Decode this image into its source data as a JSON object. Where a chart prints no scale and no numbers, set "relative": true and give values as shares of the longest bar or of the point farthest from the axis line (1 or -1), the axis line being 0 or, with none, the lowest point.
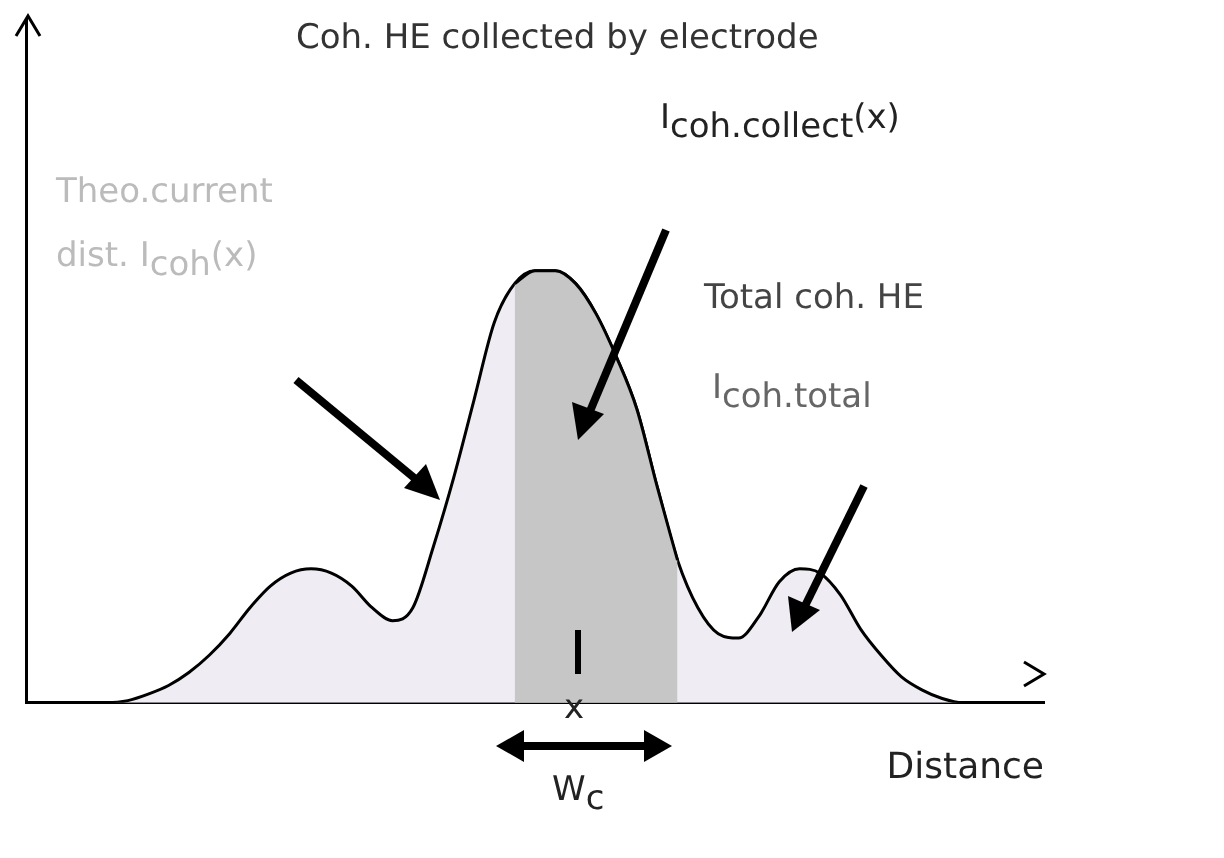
{
  "chart_data": {
    "type": "area",
    "relative": true,
    "xlabel": "Distance",
    "categories": [
      null,
      null,
      null,
      null,
      null,
      null,
      null,
      null,
      null,
      null,
      null,
      null,
      null,
      null,
      null,
      null,
      null,
      null,
      null,
      null,
      null,
      null,
      null,
      null,
      null,
      null,
      null,
      null,
      null,
      null,
      null,
      null,
      null,
      null,
      null,
      null,
      null,
      null,
      null,
      null,
      null,
      null,
      null,
      null,
      null,
      null,
      null,
      null,
      null,
      null,
      null
    ],
    "series": [
      {
        "color": "#efecf3",
        "values": [
          0,
          0,
          0,
          0,
          0,
          0.005,
          0.02,
          0.04,
          0.07,
          0.11,
          0.16,
          0.22,
          0.27,
          0.3,
          0.31,
          0.3,
          0.27,
          0.22,
          0.19,
          0.22,
          0.36,
          0.52,
          0.7,
          0.88,
          0.97,
          1,
          1,
          0.97,
          0.9,
          0.8,
          0.68,
          0.5,
          0.33,
          0.22,
          0.16,
          0.15,
          0.2,
          0.28,
          0.31,
          0.3,
          0.25,
          0.17,
          0.11,
          0.06,
          0.03,
          0.01,
          0,
          0,
          0,
          0,
          0
        ]
      },
      {
        "color": "#c6c6c6",
        "values": [
          null,
          null,
          null,
          null,
          null,
          null,
          null,
          null,
          null,
          null,
          null,
          null,
          null,
          null,
          null,
          null,
          null,
          null,
          null,
          null,
          null,
          null,
          null,
          null,
          0.97,
          1,
          1,
          0.97,
          0.9,
          0.8,
          0.68,
          0.5,
          0.33,
          null,
          null,
          null,
          null,
          null,
          null,
          null,
          null,
          null,
          null,
          null,
          null,
          null,
          null,
          null,
          null,
          null,
          null
        ]
      }
    ],
    "annotations": [
      "Coh. HE collected by electrode",
      "I$_{coh.collect}$(x)",
      "Theo.current dist. I$_{coh}$(x)",
      "Total coh. HE",
      "I$_{coh.total}$",
      "x",
      "W$_{c}$"
    ]
  }
}
